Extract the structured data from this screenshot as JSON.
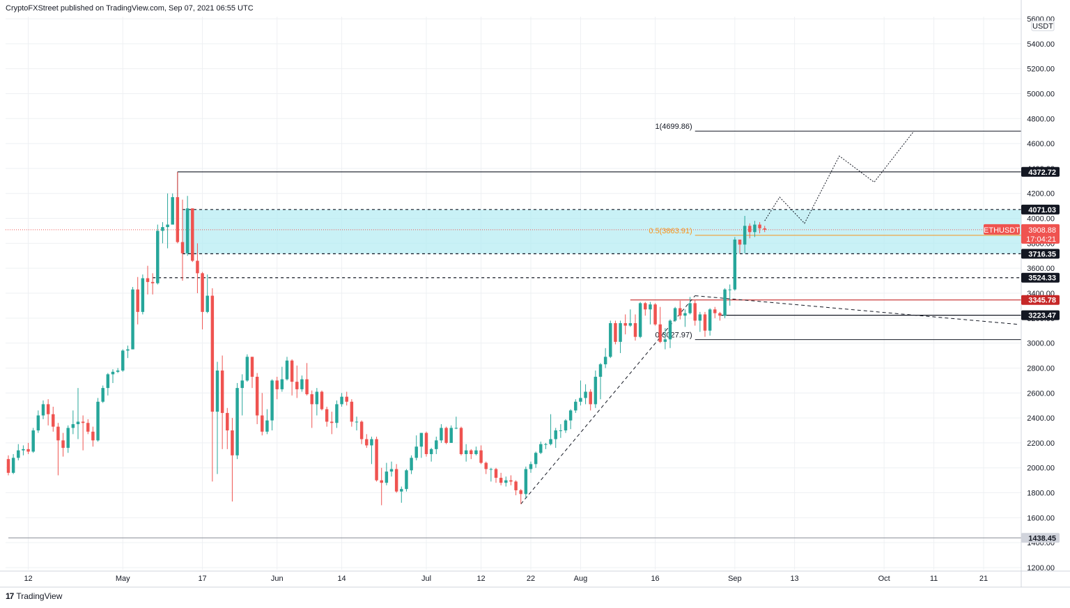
{
  "header": {
    "text": "CryptoFXStreet published on TradingView.com, Sep 07, 2021 06:55 UTC"
  },
  "footer": {
    "brand": "TradingView"
  },
  "colors": {
    "up": "#26a69a",
    "down": "#ef5350",
    "zone": "#b2ebf2",
    "fib_half": "#f7931a",
    "resistance_red": "#c62828",
    "grid": "#eef0f3"
  },
  "icons": [
    "tradingview-logo-icon"
  ],
  "chart_data": {
    "type": "candlestick",
    "symbol": "ETHUSDT",
    "currency_label": "USDT",
    "current_price": "3908.88",
    "countdown": "17:04:21",
    "ylim": [
      1200,
      5600
    ],
    "y_ticks": [
      1200,
      1400,
      1600,
      1800,
      2000,
      2200,
      2400,
      2600,
      2800,
      3000,
      3200,
      3400,
      3600,
      3800,
      4000,
      4200,
      4400,
      4600,
      4800,
      5000,
      5200,
      5400,
      5600
    ],
    "y_tick_labels": [
      "1200.00",
      "1400.00",
      "1600.00",
      "1800.00",
      "2000.00",
      "2200.00",
      "2400.00",
      "2600.00",
      "2800.00",
      "3000.00",
      "3200.00",
      "3400.00",
      "3600.00",
      "3800.00",
      "4000.00",
      "4200.00",
      "4400.00",
      "4600.00",
      "4800.00",
      "5000.00",
      "5200.00",
      "5400.00",
      "5600.00"
    ],
    "x_start": "2021-04-08",
    "x_end": "2021-10-28",
    "x_ticks": [
      {
        "date": "2021-04-12",
        "label": "12"
      },
      {
        "date": "2021-05-01",
        "label": "May"
      },
      {
        "date": "2021-05-17",
        "label": "17"
      },
      {
        "date": "2021-06-01",
        "label": "Jun"
      },
      {
        "date": "2021-06-14",
        "label": "14"
      },
      {
        "date": "2021-07-01",
        "label": "Jul"
      },
      {
        "date": "2021-07-12",
        "label": "12"
      },
      {
        "date": "2021-07-22",
        "label": "22"
      },
      {
        "date": "2021-08-01",
        "label": "Aug"
      },
      {
        "date": "2021-08-16",
        "label": "16"
      },
      {
        "date": "2021-09-01",
        "label": "Sep"
      },
      {
        "date": "2021-09-13",
        "label": "13"
      },
      {
        "date": "2021-10-01",
        "label": "Oct"
      },
      {
        "date": "2021-10-11",
        "label": "11"
      },
      {
        "date": "2021-10-21",
        "label": "21"
      }
    ],
    "price_levels": [
      {
        "value": 4372.72,
        "label": "4372.72",
        "style": "solid",
        "color": "#131722",
        "start": "2021-05-12"
      },
      {
        "value": 4071.03,
        "label": "4071.03",
        "style": "dashed",
        "color": "#131722",
        "start": "2021-05-13"
      },
      {
        "value": 3716.35,
        "label": "3716.35",
        "style": "dashed",
        "color": "#131722",
        "start": "2021-05-13"
      },
      {
        "value": 3524.33,
        "label": "3524.33",
        "style": "dashed",
        "color": "#131722",
        "start": "2021-05-07"
      },
      {
        "value": 3345.78,
        "label": "3345.78",
        "style": "solid",
        "color": "#c62828",
        "start": "2021-08-11"
      },
      {
        "value": 3223.47,
        "label": "3223.47",
        "style": "solid",
        "color": "#131722",
        "start": "2021-08-29"
      },
      {
        "value": 1438.45,
        "label": "1438.45",
        "style": "solid",
        "color": "#9598a1",
        "start": "2021-04-08"
      }
    ],
    "demand_zone": {
      "top": 4071.03,
      "bottom": 3716.35,
      "start": "2021-05-13"
    },
    "fib_levels": [
      {
        "label": "1(4699.86)",
        "value": 4699.86,
        "color": "#131722"
      },
      {
        "label": "0.5(3863.91)",
        "value": 3863.91,
        "color": "#f7931a"
      },
      {
        "label": "0(3027.97)",
        "value": 3027.97,
        "color": "#131722"
      }
    ],
    "trendlines": [
      {
        "from": [
          "2021-07-20",
          1710
        ],
        "to": [
          "2021-08-24",
          3380
        ],
        "style": "dashed"
      },
      {
        "from": [
          "2021-08-24",
          3380
        ],
        "to": [
          "2021-10-28",
          3150
        ],
        "style": "dashed"
      }
    ],
    "projection": [
      [
        "2021-09-07",
        3980
      ],
      [
        "2021-09-10",
        4170
      ],
      [
        "2021-09-15",
        3960
      ],
      [
        "2021-09-22",
        4500
      ],
      [
        "2021-09-29",
        4290
      ],
      [
        "2021-10-07",
        4700
      ]
    ],
    "candles": [
      [
        "2021-04-08",
        2070,
        2100,
        1940,
        1960
      ],
      [
        "2021-04-09",
        1960,
        2110,
        1950,
        2080
      ],
      [
        "2021-04-10",
        2080,
        2190,
        2060,
        2140
      ],
      [
        "2021-04-11",
        2140,
        2180,
        2100,
        2150
      ],
      [
        "2021-04-12",
        2150,
        2200,
        2110,
        2130
      ],
      [
        "2021-04-13",
        2130,
        2320,
        2120,
        2300
      ],
      [
        "2021-04-14",
        2300,
        2460,
        2280,
        2420
      ],
      [
        "2021-04-15",
        2420,
        2540,
        2390,
        2510
      ],
      [
        "2021-04-16",
        2510,
        2550,
        2340,
        2430
      ],
      [
        "2021-04-17",
        2430,
        2490,
        2290,
        2330
      ],
      [
        "2021-04-18",
        2330,
        2360,
        1940,
        2220
      ],
      [
        "2021-04-19",
        2220,
        2280,
        2090,
        2160
      ],
      [
        "2021-04-20",
        2160,
        2340,
        2120,
        2320
      ],
      [
        "2021-04-21",
        2320,
        2460,
        2270,
        2350
      ],
      [
        "2021-04-22",
        2350,
        2640,
        2230,
        2370
      ],
      [
        "2021-04-23",
        2370,
        2420,
        2140,
        2360
      ],
      [
        "2021-04-24",
        2360,
        2390,
        2270,
        2290
      ],
      [
        "2021-04-25",
        2290,
        2330,
        2170,
        2220
      ],
      [
        "2021-04-26",
        2220,
        2560,
        2210,
        2530
      ],
      [
        "2021-04-27",
        2530,
        2660,
        2520,
        2640
      ],
      [
        "2021-04-28",
        2640,
        2760,
        2580,
        2750
      ],
      [
        "2021-04-29",
        2750,
        2790,
        2680,
        2770
      ],
      [
        "2021-04-30",
        2770,
        2800,
        2760,
        2780
      ],
      [
        "2021-05-01",
        2780,
        2950,
        2770,
        2940
      ],
      [
        "2021-05-02",
        2940,
        2980,
        2880,
        2950
      ],
      [
        "2021-05-03",
        2950,
        3450,
        2950,
        3430
      ],
      [
        "2021-05-04",
        3430,
        3530,
        3150,
        3250
      ],
      [
        "2021-05-05",
        3250,
        3550,
        3230,
        3520
      ],
      [
        "2021-05-06",
        3520,
        3620,
        3390,
        3490
      ],
      [
        "2021-05-07",
        3490,
        3560,
        3390,
        3480
      ],
      [
        "2021-05-08",
        3480,
        3950,
        3470,
        3900
      ],
      [
        "2021-05-09",
        3900,
        3970,
        3800,
        3930
      ],
      [
        "2021-05-10",
        3930,
        4200,
        3760,
        3950
      ],
      [
        "2021-05-11",
        3950,
        4200,
        3950,
        4170
      ],
      [
        "2021-05-12",
        4170,
        4372,
        3800,
        3810
      ],
      [
        "2021-05-13",
        3810,
        4150,
        3500,
        3720
      ],
      [
        "2021-05-14",
        3720,
        4180,
        3700,
        4080
      ],
      [
        "2021-05-15",
        4080,
        4080,
        3650,
        3660
      ],
      [
        "2021-05-16",
        3660,
        3800,
        3400,
        3560
      ],
      [
        "2021-05-17",
        3560,
        3570,
        3110,
        3250
      ],
      [
        "2021-05-18",
        3250,
        3550,
        3240,
        3380
      ],
      [
        "2021-05-19",
        3380,
        3440,
        1890,
        2450
      ],
      [
        "2021-05-20",
        2450,
        2850,
        1950,
        2780
      ],
      [
        "2021-05-21",
        2780,
        2900,
        2150,
        2440
      ],
      [
        "2021-05-22",
        2440,
        2480,
        2150,
        2300
      ],
      [
        "2021-05-23",
        2300,
        2400,
        1730,
        2100
      ],
      [
        "2021-05-24",
        2100,
        2680,
        2070,
        2640
      ],
      [
        "2021-05-25",
        2640,
        2750,
        2420,
        2700
      ],
      [
        "2021-05-26",
        2700,
        2910,
        2690,
        2890
      ],
      [
        "2021-05-27",
        2890,
        2890,
        2640,
        2730
      ],
      [
        "2021-05-28",
        2730,
        2760,
        2350,
        2420
      ],
      [
        "2021-05-29",
        2420,
        2600,
        2260,
        2290
      ],
      [
        "2021-05-30",
        2290,
        2470,
        2270,
        2380
      ],
      [
        "2021-05-31",
        2380,
        2710,
        2300,
        2700
      ],
      [
        "2021-06-01",
        2700,
        2730,
        2550,
        2630
      ],
      [
        "2021-06-02",
        2630,
        2810,
        2610,
        2710
      ],
      [
        "2021-06-03",
        2710,
        2890,
        2700,
        2860
      ],
      [
        "2021-06-04",
        2860,
        2870,
        2580,
        2690
      ],
      [
        "2021-06-05",
        2690,
        2820,
        2560,
        2630
      ],
      [
        "2021-06-06",
        2630,
        2740,
        2610,
        2710
      ],
      [
        "2021-06-07",
        2710,
        2840,
        2580,
        2590
      ],
      [
        "2021-06-08",
        2590,
        2620,
        2320,
        2510
      ],
      [
        "2021-06-09",
        2510,
        2640,
        2420,
        2610
      ],
      [
        "2021-06-10",
        2610,
        2620,
        2460,
        2470
      ],
      [
        "2021-06-11",
        2470,
        2490,
        2330,
        2370
      ],
      [
        "2021-06-12",
        2370,
        2450,
        2270,
        2360
      ],
      [
        "2021-06-13",
        2360,
        2540,
        2320,
        2510
      ],
      [
        "2021-06-14",
        2510,
        2600,
        2490,
        2570
      ],
      [
        "2021-06-15",
        2570,
        2610,
        2500,
        2530
      ],
      [
        "2021-06-16",
        2530,
        2550,
        2330,
        2370
      ],
      [
        "2021-06-17",
        2370,
        2410,
        2300,
        2370
      ],
      [
        "2021-06-18",
        2370,
        2380,
        2190,
        2230
      ],
      [
        "2021-06-19",
        2230,
        2270,
        2160,
        2180
      ],
      [
        "2021-06-20",
        2180,
        2250,
        2030,
        2230
      ],
      [
        "2021-06-21",
        2230,
        2250,
        1890,
        1900
      ],
      [
        "2021-06-22",
        1900,
        2000,
        1700,
        1880
      ],
      [
        "2021-06-23",
        1880,
        2040,
        1860,
        1970
      ],
      [
        "2021-06-24",
        1970,
        2050,
        1930,
        1990
      ],
      [
        "2021-06-25",
        1990,
        2030,
        1800,
        1810
      ],
      [
        "2021-06-26",
        1810,
        1850,
        1720,
        1830
      ],
      [
        "2021-06-27",
        1830,
        1990,
        1810,
        1980
      ],
      [
        "2021-06-28",
        1980,
        2100,
        1950,
        2080
      ],
      [
        "2021-06-29",
        2080,
        2260,
        2060,
        2170
      ],
      [
        "2021-06-30",
        2170,
        2280,
        2080,
        2280
      ],
      [
        "2021-07-01",
        2280,
        2290,
        2090,
        2110
      ],
      [
        "2021-07-02",
        2110,
        2160,
        2050,
        2150
      ],
      [
        "2021-07-03",
        2150,
        2250,
        2110,
        2220
      ],
      [
        "2021-07-04",
        2220,
        2350,
        2200,
        2320
      ],
      [
        "2021-07-05",
        2320,
        2330,
        2190,
        2200
      ],
      [
        "2021-07-06",
        2200,
        2340,
        2200,
        2320
      ],
      [
        "2021-07-07",
        2320,
        2410,
        2310,
        2320
      ],
      [
        "2021-07-08",
        2320,
        2330,
        2100,
        2110
      ],
      [
        "2021-07-09",
        2110,
        2190,
        2050,
        2140
      ],
      [
        "2021-07-10",
        2140,
        2150,
        2070,
        2110
      ],
      [
        "2021-07-11",
        2110,
        2170,
        2100,
        2140
      ],
      [
        "2021-07-12",
        2140,
        2180,
        2030,
        2040
      ],
      [
        "2021-07-13",
        2040,
        2050,
        1950,
        1990
      ],
      [
        "2021-07-14",
        1990,
        2000,
        1890,
        1990
      ],
      [
        "2021-07-15",
        1990,
        2000,
        1880,
        1920
      ],
      [
        "2021-07-16",
        1920,
        1960,
        1860,
        1880
      ],
      [
        "2021-07-17",
        1880,
        1930,
        1850,
        1900
      ],
      [
        "2021-07-18",
        1900,
        1940,
        1860,
        1890
      ],
      [
        "2021-07-19",
        1890,
        1900,
        1780,
        1820
      ],
      [
        "2021-07-20",
        1820,
        1830,
        1710,
        1790
      ],
      [
        "2021-07-21",
        1790,
        2010,
        1760,
        1990
      ],
      [
        "2021-07-22",
        1990,
        2050,
        1960,
        2030
      ],
      [
        "2021-07-23",
        2030,
        2130,
        2000,
        2120
      ],
      [
        "2021-07-24",
        2120,
        2210,
        2110,
        2190
      ],
      [
        "2021-07-25",
        2190,
        2200,
        2150,
        2190
      ],
      [
        "2021-07-26",
        2190,
        2430,
        2180,
        2230
      ],
      [
        "2021-07-27",
        2230,
        2320,
        2160,
        2300
      ],
      [
        "2021-07-28",
        2300,
        2350,
        2240,
        2300
      ],
      [
        "2021-07-29",
        2300,
        2390,
        2280,
        2380
      ],
      [
        "2021-07-30",
        2380,
        2470,
        2310,
        2460
      ],
      [
        "2021-07-31",
        2460,
        2550,
        2440,
        2530
      ],
      [
        "2021-08-01",
        2530,
        2700,
        2500,
        2560
      ],
      [
        "2021-08-02",
        2560,
        2670,
        2510,
        2610
      ],
      [
        "2021-08-03",
        2610,
        2630,
        2460,
        2510
      ],
      [
        "2021-08-04",
        2510,
        2780,
        2480,
        2730
      ],
      [
        "2021-08-05",
        2730,
        2840,
        2550,
        2830
      ],
      [
        "2021-08-06",
        2830,
        2960,
        2800,
        2890
      ],
      [
        "2021-08-07",
        2890,
        3180,
        2880,
        3160
      ],
      [
        "2021-08-08",
        3160,
        3180,
        2990,
        3010
      ],
      [
        "2021-08-09",
        3010,
        3180,
        2920,
        3160
      ],
      [
        "2021-08-10",
        3160,
        3230,
        3070,
        3140
      ],
      [
        "2021-08-11",
        3140,
        3270,
        3130,
        3160
      ],
      [
        "2021-08-12",
        3160,
        3230,
        3020,
        3050
      ],
      [
        "2021-08-13",
        3050,
        3330,
        3040,
        3320
      ],
      [
        "2021-08-14",
        3320,
        3330,
        3220,
        3270
      ],
      [
        "2021-08-15",
        3270,
        3330,
        3150,
        3310
      ],
      [
        "2021-08-16",
        3310,
        3320,
        3140,
        3150
      ],
      [
        "2021-08-17",
        3150,
        3290,
        3000,
        3010
      ],
      [
        "2021-08-18",
        3010,
        3120,
        2950,
        3030
      ],
      [
        "2021-08-19",
        3030,
        3190,
        2960,
        3180
      ],
      [
        "2021-08-20",
        3180,
        3290,
        3170,
        3280
      ],
      [
        "2021-08-21",
        3280,
        3340,
        3190,
        3220
      ],
      [
        "2021-08-22",
        3220,
        3270,
        3130,
        3240
      ],
      [
        "2021-08-23",
        3240,
        3370,
        3230,
        3320
      ],
      [
        "2021-08-24",
        3320,
        3350,
        3140,
        3180
      ],
      [
        "2021-08-25",
        3180,
        3250,
        3090,
        3230
      ],
      [
        "2021-08-26",
        3230,
        3250,
        3050,
        3100
      ],
      [
        "2021-08-27",
        3100,
        3280,
        3060,
        3270
      ],
      [
        "2021-08-28",
        3270,
        3290,
        3200,
        3240
      ],
      [
        "2021-08-29",
        3240,
        3250,
        3180,
        3220
      ],
      [
        "2021-08-30",
        3220,
        3440,
        3200,
        3430
      ],
      [
        "2021-08-31",
        3430,
        3470,
        3300,
        3430
      ],
      [
        "2021-09-01",
        3430,
        3850,
        3420,
        3830
      ],
      [
        "2021-09-02",
        3830,
        3830,
        3720,
        3790
      ],
      [
        "2021-09-03",
        3790,
        4020,
        3720,
        3940
      ],
      [
        "2021-09-04",
        3940,
        3960,
        3840,
        3890
      ],
      [
        "2021-09-05",
        3890,
        3980,
        3850,
        3950
      ],
      [
        "2021-09-06",
        3950,
        3970,
        3880,
        3920
      ],
      [
        "2021-09-07",
        3920,
        3940,
        3890,
        3909
      ]
    ]
  }
}
